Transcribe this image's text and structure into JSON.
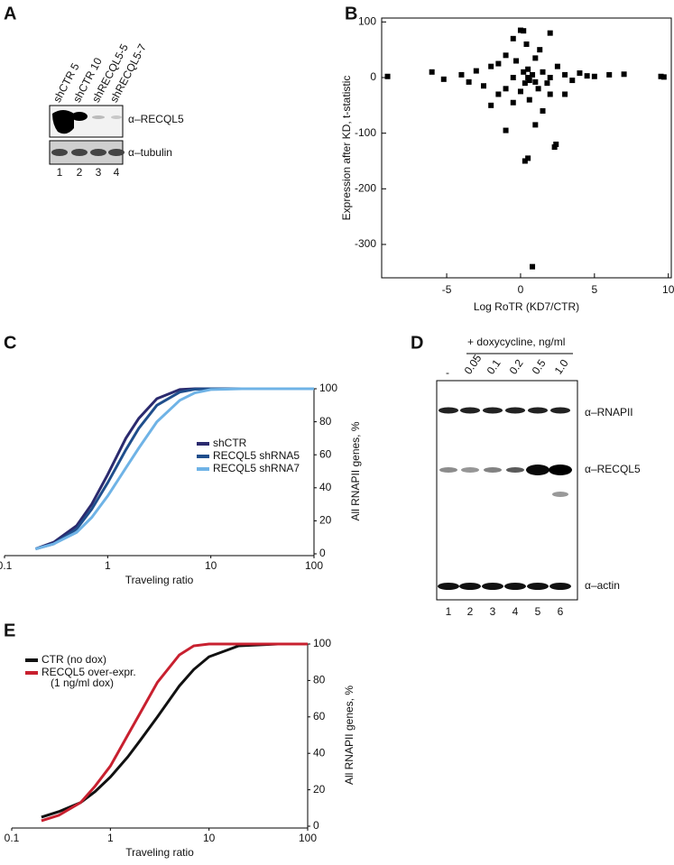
{
  "blots": {
    "A": {
      "panel": "A",
      "lanes": [
        "shCTR 5",
        "shCTR 10",
        "shRECQL5-5",
        "shRECQL5-7"
      ],
      "antibodies": [
        "α–RECQL5",
        "α–tubulin"
      ],
      "lane_numbers": [
        "1",
        "2",
        "3",
        "4"
      ]
    },
    "D": {
      "panel": "D",
      "header": "+ doxycycline, ng/ml",
      "lanes": [
        "-",
        "0.05",
        "0.1",
        "0.2",
        "0.5",
        "1.0"
      ],
      "antibodies": [
        "α–RNAPII",
        "α–RECQL5",
        "α–actin"
      ],
      "lane_numbers": [
        "1",
        "2",
        "3",
        "4",
        "5",
        "6"
      ]
    }
  },
  "chart_data": [
    {
      "type": "scatter",
      "panel": "B",
      "x_label": "Log RoTR (KD7/CTR)",
      "y_label": "Expression after KD, t-statistic",
      "color": "#000000",
      "x": [
        -9,
        -6,
        -5.2,
        -4,
        -3.5,
        -3,
        -2.5,
        -2,
        -2,
        -1.5,
        -1.5,
        -1,
        -1,
        -0.5,
        -0.5,
        -0.3,
        0,
        0,
        0.2,
        0.3,
        0.4,
        0.5,
        0.5,
        0.6,
        0.8,
        1,
        1,
        1.2,
        1.3,
        1.5,
        1.5,
        1.8,
        2,
        2,
        2.3,
        2.4,
        2.5,
        3,
        3,
        3.5,
        4,
        4.5,
        5,
        6,
        7,
        9.5,
        9.7,
        -1,
        0.3,
        0.5,
        0.8,
        0.2,
        0.6,
        -0.5,
        1,
        2
      ],
      "values": [
        2,
        10,
        -3,
        5,
        -8,
        12,
        -15,
        20,
        -50,
        25,
        -30,
        40,
        -20,
        70,
        -45,
        30,
        85,
        -25,
        84,
        -150,
        60,
        -145,
        15,
        -40,
        -340,
        -85,
        35,
        -20,
        50,
        -60,
        10,
        -10,
        80,
        -30,
        -125,
        -120,
        20,
        -30,
        5,
        -5,
        8,
        3,
        2,
        5,
        6,
        2,
        1,
        -95,
        -10,
        0,
        5,
        10,
        -5,
        0,
        -8,
        0
      ],
      "xlim": [
        -9.4,
        10.2
      ],
      "ylim": [
        -360,
        107
      ],
      "xticks": [
        -5,
        0,
        5,
        10
      ],
      "yticks": [
        100,
        0,
        -100,
        -200,
        -300
      ]
    },
    {
      "type": "line",
      "panel": "C",
      "x_label": "Traveling ratio",
      "y_label": "All RNAPII genes, %",
      "xscale": "log",
      "legend": "center right",
      "x": [
        0.2,
        0.3,
        0.5,
        0.7,
        1,
        1.5,
        2,
        3,
        5,
        7,
        10,
        20,
        50,
        100
      ],
      "series": [
        {
          "name": "shCTR",
          "color": "#2b2a6e",
          "values": [
            3,
            7,
            17,
            30,
            48,
            70,
            82,
            94,
            99.5,
            100,
            100,
            100,
            100,
            100
          ]
        },
        {
          "name": "RECQL5 shRNA5",
          "color": "#1f4e8c",
          "values": [
            3,
            6,
            15,
            27,
            43,
            63,
            76,
            90,
            98,
            99.7,
            100,
            100,
            100,
            100
          ]
        },
        {
          "name": "RECQL5 shRNA7",
          "color": "#6fb3e6",
          "values": [
            3,
            6,
            13,
            22,
            35,
            52,
            64,
            80,
            93,
            97.5,
            99.5,
            100,
            100,
            100
          ]
        }
      ],
      "xlim": [
        0.1,
        100
      ],
      "ylim": [
        0,
        100
      ],
      "xticks": [
        0.1,
        1,
        10,
        100
      ],
      "yticks": [
        0,
        20,
        40,
        60,
        80,
        100
      ]
    },
    {
      "type": "line",
      "panel": "E",
      "x_label": "Traveling ratio",
      "y_label": "All RNAPII genes, %",
      "xscale": "log",
      "legend": "upper left",
      "legend_note": "(1 ng/ml dox)",
      "x": [
        0.2,
        0.3,
        0.5,
        0.7,
        1,
        1.5,
        2,
        3,
        5,
        7,
        10,
        20,
        50,
        100
      ],
      "series": [
        {
          "name": "CTR (no dox)",
          "color": "#111111",
          "values": [
            5,
            8,
            13,
            19,
            27,
            38,
            47,
            60,
            77,
            86,
            93,
            99,
            100,
            100
          ]
        },
        {
          "name": "RECQL5 over-expr.",
          "color": "#c8202f",
          "values": [
            3,
            6,
            13,
            22,
            33,
            50,
            62,
            79,
            94,
            99,
            100,
            100,
            100,
            100
          ]
        }
      ],
      "xlim": [
        0.1,
        100
      ],
      "ylim": [
        0,
        100
      ],
      "xticks": [
        0.1,
        1,
        10,
        100
      ],
      "yticks": [
        0,
        20,
        40,
        60,
        80,
        100
      ]
    }
  ]
}
